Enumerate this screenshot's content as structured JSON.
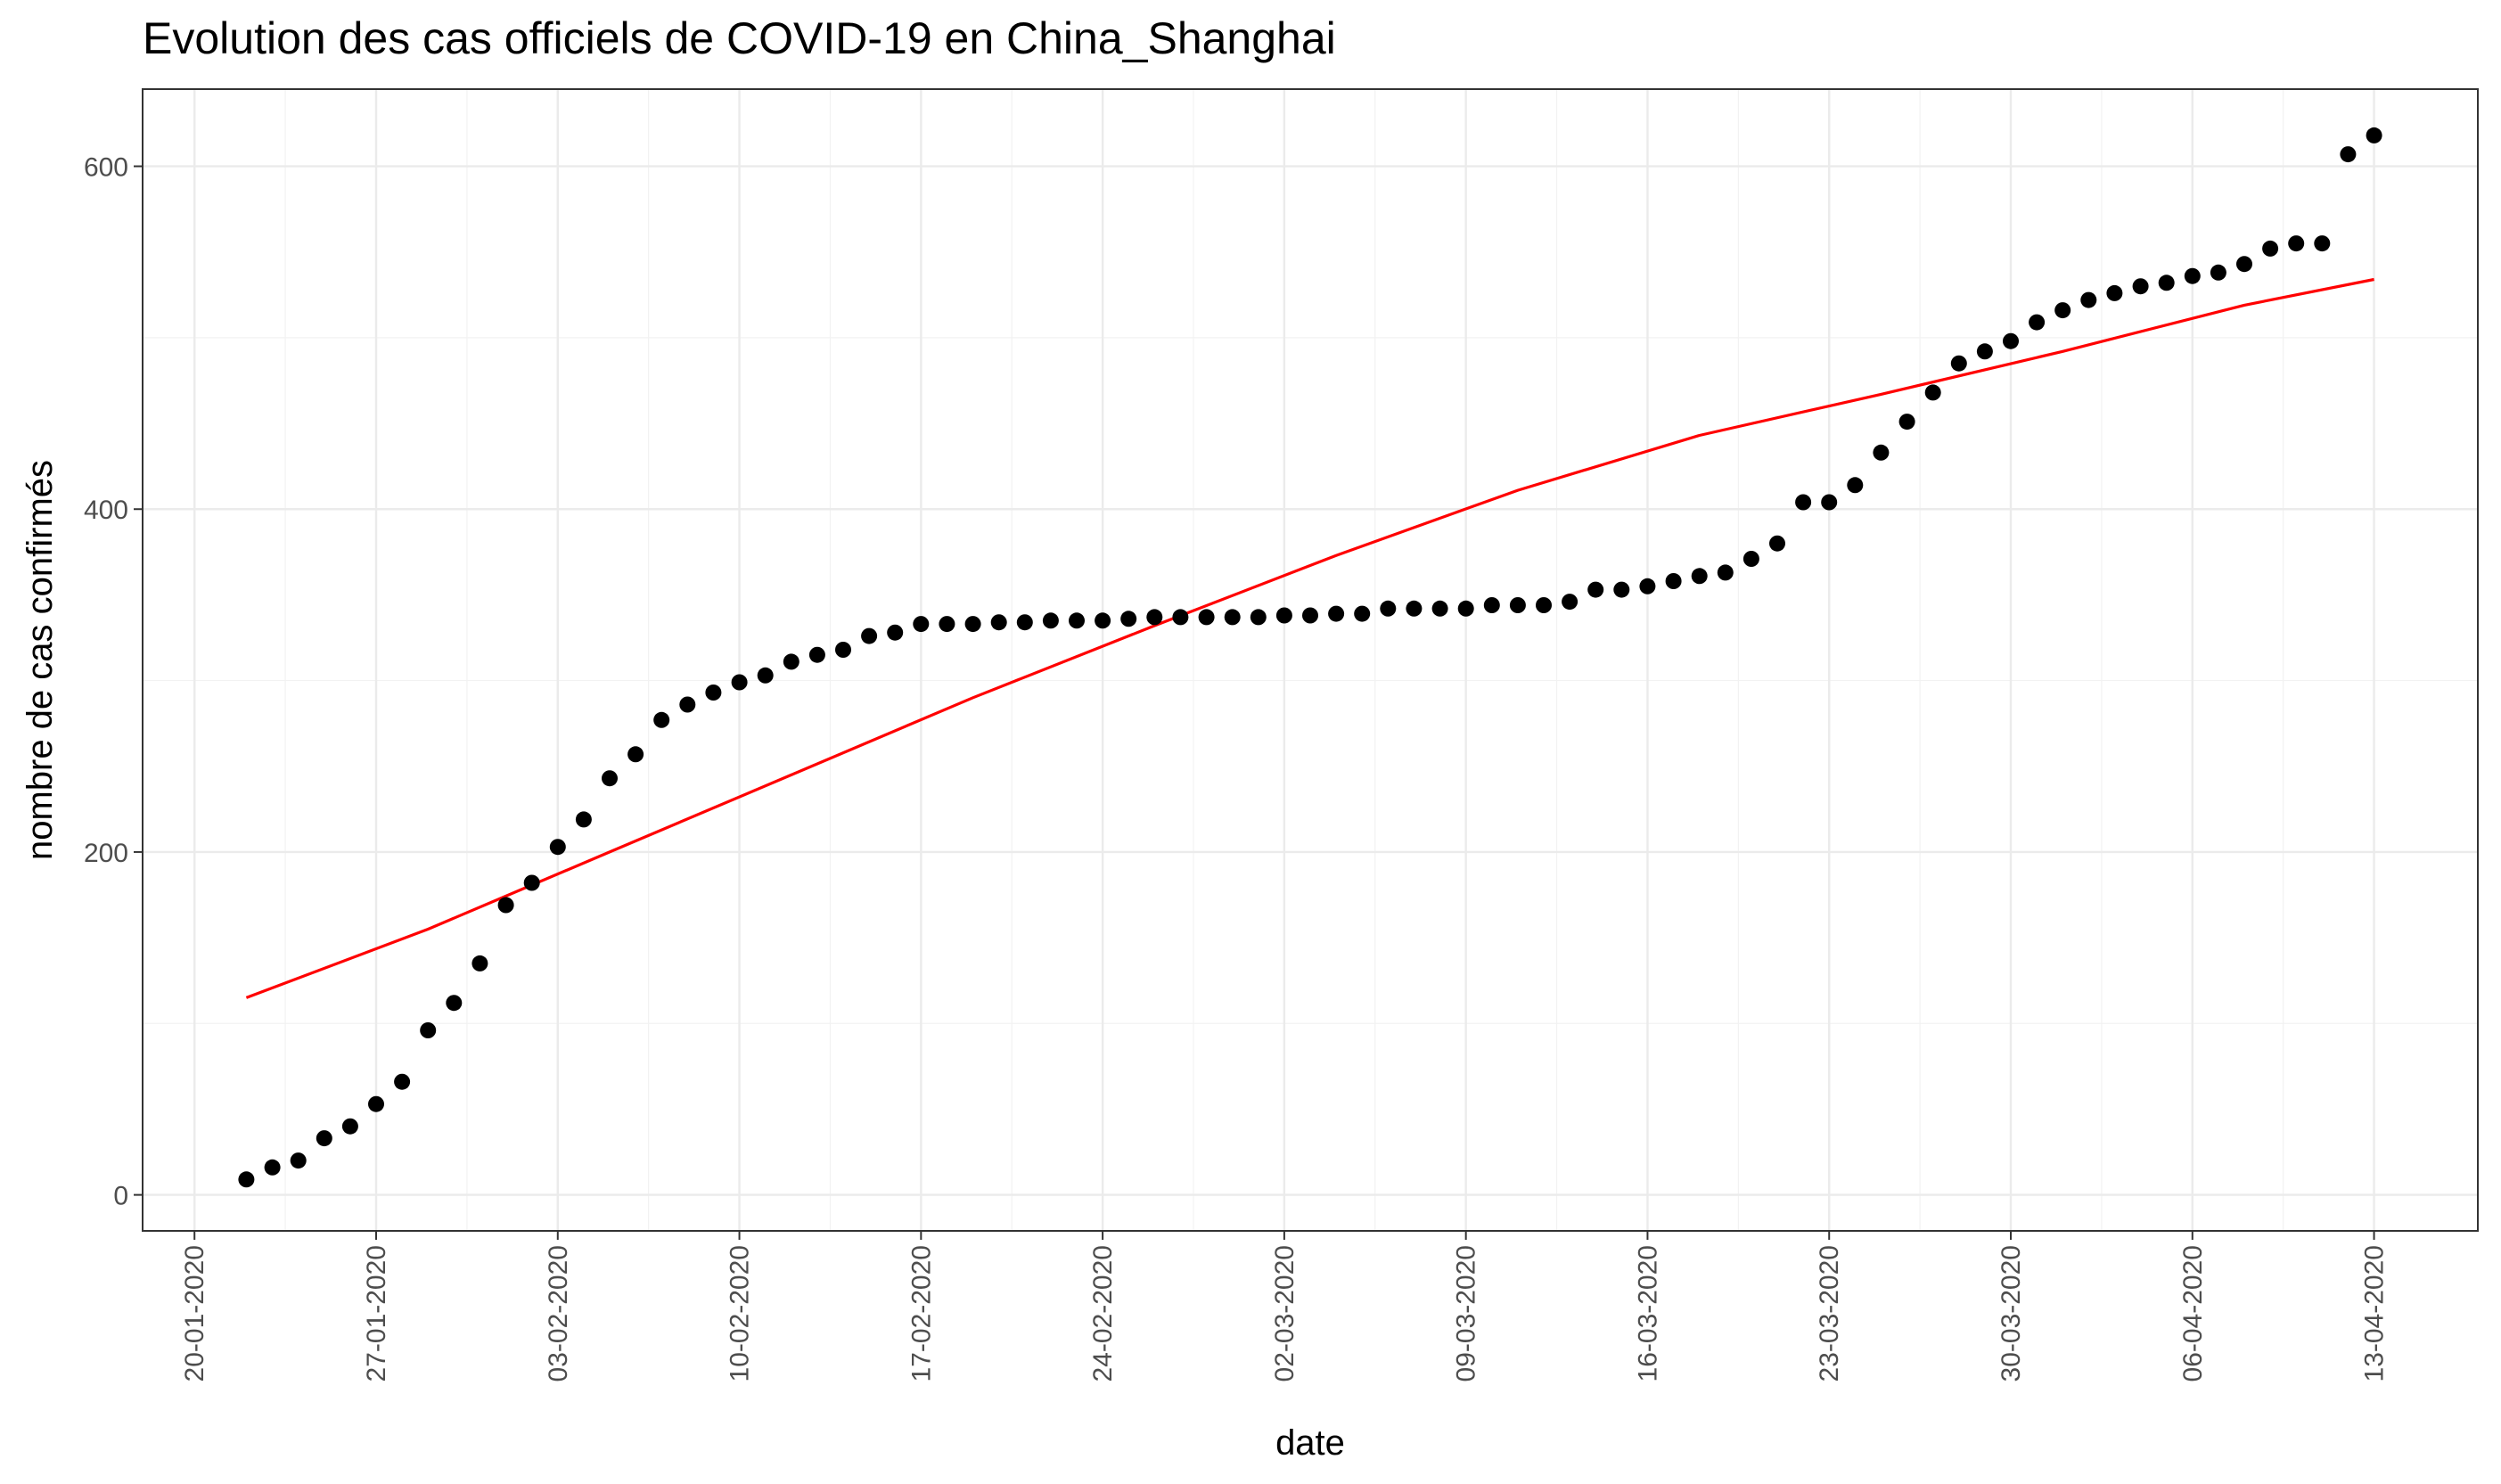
{
  "chart_data": {
    "type": "scatter",
    "title": "Evolution des cas officiels de COVID-19 en China_Shanghai",
    "xlabel": "date",
    "ylabel": "nombre de cas confirmés",
    "x_tick_labels": [
      "20-01-2020",
      "27-01-2020",
      "03-02-2020",
      "10-02-2020",
      "17-02-2020",
      "24-02-2020",
      "02-03-2020",
      "09-03-2020",
      "16-03-2020",
      "23-03-2020",
      "30-03-2020",
      "06-04-2020",
      "13-04-2020"
    ],
    "y_tick_labels": [
      "0",
      "200",
      "400",
      "600"
    ],
    "y_ticks": [
      0,
      200,
      400,
      600
    ],
    "xlim": [
      "2020-01-18",
      "2020-04-17"
    ],
    "ylim": [
      -21,
      645
    ],
    "grid": true,
    "series": [
      {
        "kind": "points",
        "color": "#000000",
        "x": [
          "2020-01-22",
          "2020-01-23",
          "2020-01-24",
          "2020-01-25",
          "2020-01-26",
          "2020-01-27",
          "2020-01-28",
          "2020-01-29",
          "2020-01-30",
          "2020-01-31",
          "2020-02-01",
          "2020-02-02",
          "2020-02-03",
          "2020-02-04",
          "2020-02-05",
          "2020-02-06",
          "2020-02-07",
          "2020-02-08",
          "2020-02-09",
          "2020-02-10",
          "2020-02-11",
          "2020-02-12",
          "2020-02-13",
          "2020-02-14",
          "2020-02-15",
          "2020-02-16",
          "2020-02-17",
          "2020-02-18",
          "2020-02-19",
          "2020-02-20",
          "2020-02-21",
          "2020-02-22",
          "2020-02-23",
          "2020-02-24",
          "2020-02-25",
          "2020-02-26",
          "2020-02-27",
          "2020-02-28",
          "2020-02-29",
          "2020-03-01",
          "2020-03-02",
          "2020-03-03",
          "2020-03-04",
          "2020-03-05",
          "2020-03-06",
          "2020-03-07",
          "2020-03-08",
          "2020-03-09",
          "2020-03-10",
          "2020-03-11",
          "2020-03-12",
          "2020-03-13",
          "2020-03-14",
          "2020-03-15",
          "2020-03-16",
          "2020-03-17",
          "2020-03-18",
          "2020-03-19",
          "2020-03-20",
          "2020-03-21",
          "2020-03-22",
          "2020-03-23",
          "2020-03-24",
          "2020-03-25",
          "2020-03-26",
          "2020-03-27",
          "2020-03-28",
          "2020-03-29",
          "2020-03-30",
          "2020-03-31",
          "2020-04-01",
          "2020-04-02",
          "2020-04-03",
          "2020-04-04",
          "2020-04-05",
          "2020-04-06",
          "2020-04-07",
          "2020-04-08",
          "2020-04-09",
          "2020-04-10",
          "2020-04-11",
          "2020-04-12",
          "2020-04-13"
        ],
        "y": [
          9,
          16,
          20,
          33,
          40,
          53,
          66,
          96,
          112,
          135,
          169,
          182,
          203,
          219,
          243,
          257,
          277,
          286,
          293,
          299,
          303,
          311,
          315,
          318,
          326,
          328,
          333,
          333,
          333,
          334,
          334,
          335,
          335,
          335,
          336,
          337,
          337,
          337,
          337,
          337,
          338,
          338,
          339,
          339,
          342,
          342,
          342,
          342,
          344,
          344,
          344,
          346,
          353,
          353,
          355,
          358,
          361,
          363,
          371,
          380,
          404,
          404,
          414,
          433,
          451,
          468,
          485,
          492,
          498,
          509,
          516,
          522,
          526,
          530,
          532,
          536,
          538,
          543,
          552,
          555,
          555,
          607,
          618
        ]
      },
      {
        "kind": "fit-line",
        "color": "#ff0000",
        "x": [
          "2020-01-22",
          "2020-01-29",
          "2020-02-05",
          "2020-02-12",
          "2020-02-19",
          "2020-02-26",
          "2020-03-04",
          "2020-03-11",
          "2020-03-18",
          "2020-03-25",
          "2020-04-01",
          "2020-04-08",
          "2020-04-13"
        ],
        "y": [
          115,
          155,
          200,
          245,
          290,
          332,
          373,
          411,
          443,
          467,
          492,
          519,
          534
        ]
      }
    ]
  }
}
